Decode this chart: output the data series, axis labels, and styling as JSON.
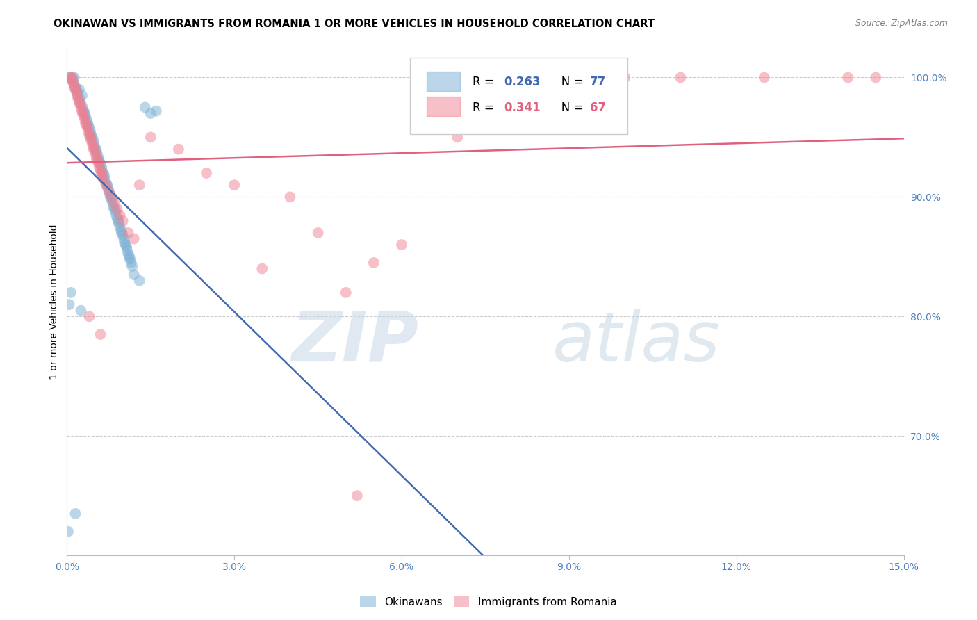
{
  "title": "OKINAWAN VS IMMIGRANTS FROM ROMANIA 1 OR MORE VEHICLES IN HOUSEHOLD CORRELATION CHART",
  "source": "Source: ZipAtlas.com",
  "ylabel": "1 or more Vehicles in Household",
  "okinawan_color": "#7bafd4",
  "romania_color": "#f08090",
  "okinawan_line_color": "#4169b0",
  "romania_line_color": "#e06080",
  "xlim": [
    0.0,
    15.0
  ],
  "ylim": [
    60.0,
    102.5
  ],
  "background_color": "#ffffff",
  "xticks": [
    0.0,
    3.0,
    6.0,
    9.0,
    12.0,
    15.0
  ],
  "xtick_labels": [
    "0.0%",
    "3.0%",
    "6.0%",
    "9.0%",
    "12.0%",
    "15.0%"
  ],
  "yticks": [
    70.0,
    80.0,
    90.0,
    100.0
  ],
  "ytick_labels": [
    "70.0%",
    "80.0%",
    "90.0%",
    "100.0%"
  ],
  "ok_x": [
    0.05,
    0.08,
    0.1,
    0.12,
    0.13,
    0.15,
    0.17,
    0.18,
    0.2,
    0.22,
    0.23,
    0.25,
    0.27,
    0.28,
    0.3,
    0.32,
    0.33,
    0.35,
    0.37,
    0.38,
    0.4,
    0.42,
    0.43,
    0.45,
    0.47,
    0.48,
    0.5,
    0.52,
    0.53,
    0.55,
    0.57,
    0.58,
    0.6,
    0.62,
    0.63,
    0.65,
    0.67,
    0.68,
    0.7,
    0.72,
    0.73,
    0.75,
    0.77,
    0.78,
    0.8,
    0.82,
    0.83,
    0.85,
    0.87,
    0.88,
    0.9,
    0.92,
    0.93,
    0.95,
    0.97,
    0.98,
    1.0,
    1.02,
    1.03,
    1.05,
    1.07,
    1.08,
    1.1,
    1.12,
    1.13,
    1.15,
    1.17,
    1.2,
    1.3,
    1.4,
    1.5,
    1.6,
    0.02,
    0.15,
    0.25,
    0.04,
    0.07
  ],
  "ok_y": [
    100.0,
    100.0,
    99.8,
    99.5,
    100.0,
    99.2,
    99.0,
    98.8,
    98.5,
    99.0,
    98.2,
    97.8,
    98.5,
    97.5,
    97.2,
    97.0,
    96.8,
    96.5,
    96.2,
    96.0,
    95.8,
    95.5,
    95.2,
    95.0,
    94.8,
    94.5,
    94.2,
    94.0,
    93.8,
    93.5,
    93.2,
    93.0,
    92.8,
    92.5,
    92.2,
    92.0,
    91.8,
    91.5,
    91.2,
    91.0,
    90.8,
    90.5,
    90.2,
    90.0,
    89.8,
    89.5,
    89.2,
    89.0,
    88.8,
    88.5,
    88.2,
    88.0,
    87.8,
    87.5,
    87.2,
    87.0,
    86.8,
    86.5,
    86.2,
    86.0,
    85.8,
    85.5,
    85.2,
    85.0,
    84.8,
    84.5,
    84.2,
    83.5,
    83.0,
    97.5,
    97.0,
    97.2,
    62.0,
    63.5,
    80.5,
    81.0,
    82.0
  ],
  "ro_x": [
    0.05,
    0.08,
    0.1,
    0.12,
    0.13,
    0.15,
    0.17,
    0.18,
    0.2,
    0.22,
    0.23,
    0.25,
    0.27,
    0.28,
    0.3,
    0.32,
    0.33,
    0.35,
    0.37,
    0.38,
    0.4,
    0.42,
    0.43,
    0.45,
    0.47,
    0.48,
    0.5,
    0.52,
    0.53,
    0.55,
    0.57,
    0.58,
    0.6,
    0.62,
    0.63,
    0.65,
    0.7,
    0.75,
    0.8,
    0.85,
    0.9,
    0.95,
    1.0,
    1.1,
    1.2,
    1.3,
    1.5,
    2.0,
    2.5,
    3.0,
    3.5,
    4.0,
    4.5,
    5.0,
    5.5,
    6.0,
    7.0,
    8.0,
    9.0,
    10.0,
    11.0,
    12.5,
    14.0,
    14.5,
    5.2,
    0.6,
    0.4
  ],
  "ro_y": [
    100.0,
    99.8,
    100.0,
    99.5,
    99.2,
    99.0,
    98.8,
    98.5,
    98.2,
    98.0,
    97.8,
    97.5,
    97.2,
    97.0,
    96.8,
    96.5,
    96.2,
    96.0,
    95.8,
    95.5,
    95.2,
    95.0,
    94.8,
    94.5,
    94.2,
    94.0,
    93.8,
    93.5,
    93.2,
    93.0,
    92.8,
    92.5,
    92.2,
    92.0,
    91.8,
    91.5,
    91.0,
    90.5,
    90.0,
    89.5,
    89.0,
    88.5,
    88.0,
    87.0,
    86.5,
    91.0,
    95.0,
    94.0,
    92.0,
    91.0,
    84.0,
    90.0,
    87.0,
    82.0,
    84.5,
    86.0,
    95.0,
    97.0,
    99.0,
    100.0,
    100.0,
    100.0,
    100.0,
    100.0,
    65.0,
    78.5,
    80.0
  ]
}
